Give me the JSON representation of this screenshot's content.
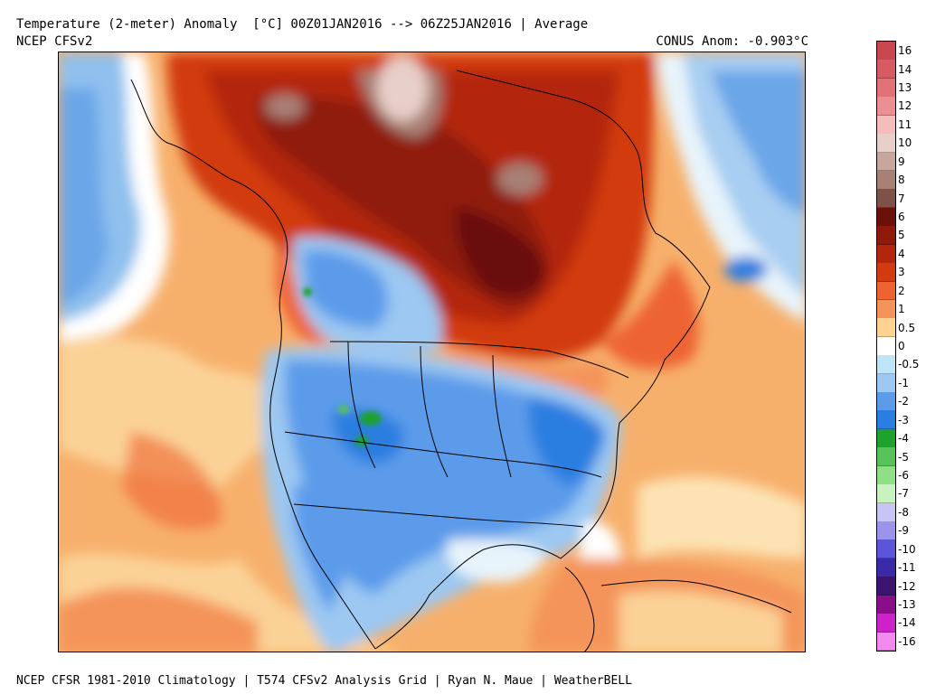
{
  "header": {
    "title": "Temperature (2-meter) Anomaly  [°C] 00Z01JAN2016 --> 06Z25JAN2016 | Average",
    "model": "NCEP CFSv2",
    "conus_anomaly": "CONUS Anom: -0.903°C"
  },
  "footer": {
    "credits": "NCEP CFSR 1981-2010 Climatology | T574 CFSv2 Analysis Grid | Ryan N. Maue | WeatherBELL"
  },
  "colorbar": {
    "bins": [
      {
        "label": "16",
        "color": "#c9474f"
      },
      {
        "label": "14",
        "color": "#d65b63"
      },
      {
        "label": "13",
        "color": "#e07278"
      },
      {
        "label": "12",
        "color": "#eb8f92"
      },
      {
        "label": "11",
        "color": "#f5bcbc"
      },
      {
        "label": "10",
        "color": "#e8cfc8"
      },
      {
        "label": "9",
        "color": "#c7a69c"
      },
      {
        "label": "8",
        "color": "#a88075"
      },
      {
        "label": "7",
        "color": "#7e5249"
      },
      {
        "label": "6",
        "color": "#6b1008"
      },
      {
        "label": "5",
        "color": "#8f1a0a"
      },
      {
        "label": "4",
        "color": "#b3260d"
      },
      {
        "label": "3",
        "color": "#d23a10"
      },
      {
        "label": "2",
        "color": "#ee6430"
      },
      {
        "label": "1",
        "color": "#f4945a"
      },
      {
        "label": "0.5",
        "color": "#fdd38f"
      },
      {
        "label": "0",
        "color": "#ffffff"
      },
      {
        "label": "-0.5",
        "color": "#bfe6f7"
      },
      {
        "label": "-1",
        "color": "#9cc8f2"
      },
      {
        "label": "-2",
        "color": "#5c9bea"
      },
      {
        "label": "-3",
        "color": "#2a7ee0"
      },
      {
        "label": "-4",
        "color": "#1fa12e"
      },
      {
        "label": "-5",
        "color": "#58c25a"
      },
      {
        "label": "-6",
        "color": "#8fdf86"
      },
      {
        "label": "-7",
        "color": "#c8f2c0"
      },
      {
        "label": "-8",
        "color": "#c8c4f4"
      },
      {
        "label": "-9",
        "color": "#9a94ec"
      },
      {
        "label": "-10",
        "color": "#5b55dc"
      },
      {
        "label": "-11",
        "color": "#3a2aa8"
      },
      {
        "label": "-12",
        "color": "#3b1470"
      },
      {
        "label": "-13",
        "color": "#8a0e8a"
      },
      {
        "label": "-14",
        "color": "#cc22c8"
      },
      {
        "label": "-16",
        "color": "#f48af0"
      }
    ]
  }
}
